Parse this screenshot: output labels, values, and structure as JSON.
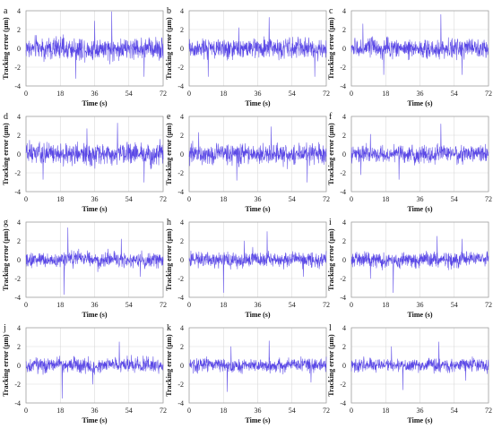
{
  "chart_data": [
    {
      "type": "line",
      "panel_label": "a",
      "xlabel": "Time (s)",
      "ylabel": "Tracking error (μm)",
      "xlim": [
        0,
        72
      ],
      "ylim": [
        -4,
        4
      ],
      "xticks": [
        "0",
        "18",
        "36",
        "54",
        "72"
      ],
      "yticks": [
        "4",
        "2",
        "0",
        "-2",
        "-4"
      ],
      "series": [
        {
          "values_summary": {
            "min": -3.3,
            "max": 3.9,
            "spikes": [
              [
                36,
                2.9
              ],
              [
                45,
                3.9
              ],
              [
                26,
                -3.2
              ],
              [
                62,
                -3.0
              ]
            ],
            "amplitude": 1.2
          }
        }
      ]
    },
    {
      "type": "line",
      "panel_label": "b",
      "xlabel": "Time (s)",
      "ylabel": "Tracking error (μm)",
      "xlim": [
        0,
        72
      ],
      "ylim": [
        -4,
        4
      ],
      "xticks": [
        "0",
        "18",
        "36",
        "54",
        "72"
      ],
      "yticks": [
        "4",
        "2",
        "0",
        "-2",
        "-4"
      ],
      "series": [
        {
          "values_summary": {
            "min": -3.0,
            "max": 3.3,
            "spikes": [
              [
                26,
                2.2
              ],
              [
                42,
                3.3
              ],
              [
                10,
                -3.0
              ],
              [
                66,
                -3.0
              ]
            ],
            "amplitude": 1.1
          }
        }
      ]
    },
    {
      "type": "line",
      "panel_label": "c",
      "xlabel": "Time (s)",
      "ylabel": "Tracking error (μm)",
      "xlim": [
        0,
        72
      ],
      "ylim": [
        -4,
        4
      ],
      "xticks": [
        "0",
        "18",
        "36",
        "54",
        "72"
      ],
      "yticks": [
        "4",
        "2",
        "0",
        "-2",
        "-4"
      ],
      "series": [
        {
          "values_summary": {
            "min": -3.0,
            "max": 3.6,
            "spikes": [
              [
                47,
                3.6
              ],
              [
                6,
                2.6
              ],
              [
                17,
                -2.8
              ],
              [
                58,
                -2.8
              ]
            ],
            "amplitude": 1.0
          }
        }
      ]
    },
    {
      "type": "line",
      "panel_label": "d",
      "xlabel": "Time (s)",
      "ylabel": "Tracking error (μm)",
      "xlim": [
        0,
        72
      ],
      "ylim": [
        -4,
        4
      ],
      "xticks": [
        "0",
        "18",
        "36",
        "54",
        "72"
      ],
      "yticks": [
        "4",
        "2",
        "0",
        "-2",
        "-4"
      ],
      "series": [
        {
          "values_summary": {
            "min": -3.0,
            "max": 3.3,
            "spikes": [
              [
                48,
                3.3
              ],
              [
                32,
                2.7
              ],
              [
                9,
                -2.7
              ],
              [
                62,
                -3.0
              ]
            ],
            "amplitude": 1.1
          }
        }
      ]
    },
    {
      "type": "line",
      "panel_label": "e",
      "xlabel": "Time (s)",
      "ylabel": "Tracking error (μm)",
      "xlim": [
        0,
        72
      ],
      "ylim": [
        -4,
        4
      ],
      "xticks": [
        "0",
        "18",
        "36",
        "54",
        "72"
      ],
      "yticks": [
        "4",
        "2",
        "0",
        "-2",
        "-4"
      ],
      "series": [
        {
          "values_summary": {
            "min": -3.0,
            "max": 2.9,
            "spikes": [
              [
                43,
                2.9
              ],
              [
                5,
                2.3
              ],
              [
                25,
                -2.8
              ],
              [
                62,
                -3.0
              ]
            ],
            "amplitude": 1.1
          }
        }
      ]
    },
    {
      "type": "line",
      "panel_label": "f",
      "xlabel": "Time (s)",
      "ylabel": "Tracking error (μm)",
      "xlim": [
        0,
        72
      ],
      "ylim": [
        -4,
        4
      ],
      "xticks": [
        "0",
        "18",
        "36",
        "54",
        "72"
      ],
      "yticks": [
        "4",
        "2",
        "0",
        "-2",
        "-4"
      ],
      "series": [
        {
          "values_summary": {
            "min": -2.7,
            "max": 3.2,
            "spikes": [
              [
                47,
                3.2
              ],
              [
                10,
                2.1
              ],
              [
                25,
                -2.7
              ],
              [
                5,
                -2.2
              ]
            ],
            "amplitude": 0.9
          }
        }
      ]
    },
    {
      "type": "line",
      "panel_label": "g",
      "xlabel": "Time (s)",
      "ylabel": "Tracking error (μm)",
      "xlim": [
        0,
        72
      ],
      "ylim": [
        -4,
        4
      ],
      "xticks": [
        "0",
        "18",
        "36",
        "54",
        "72"
      ],
      "yticks": [
        "4",
        "2",
        "0",
        "-2",
        "-4"
      ],
      "series": [
        {
          "values_summary": {
            "min": -3.7,
            "max": 3.4,
            "spikes": [
              [
                22,
                3.4
              ],
              [
                20,
                -3.7
              ],
              [
                50,
                2.2
              ],
              [
                60,
                -1.8
              ]
            ],
            "amplitude": 0.8
          }
        }
      ]
    },
    {
      "type": "line",
      "panel_label": "h",
      "xlabel": "Time (s)",
      "ylabel": "Tracking error (μm)",
      "xlim": [
        0,
        72
      ],
      "ylim": [
        -4,
        4
      ],
      "xticks": [
        "0",
        "18",
        "36",
        "54",
        "72"
      ],
      "yticks": [
        "4",
        "2",
        "0",
        "-2",
        "-4"
      ],
      "series": [
        {
          "values_summary": {
            "min": -3.5,
            "max": 3.0,
            "spikes": [
              [
                41,
                3.0
              ],
              [
                18,
                -3.5
              ],
              [
                29,
                2.0
              ],
              [
                60,
                -1.8
              ]
            ],
            "amplitude": 0.8
          }
        }
      ]
    },
    {
      "type": "line",
      "panel_label": "i",
      "xlabel": "Time (s)",
      "ylabel": "Tracking error (μm)",
      "xlim": [
        0,
        72
      ],
      "ylim": [
        -4,
        4
      ],
      "xticks": [
        "0",
        "18",
        "36",
        "54",
        "72"
      ],
      "yticks": [
        "4",
        "2",
        "0",
        "-2",
        "-4"
      ],
      "series": [
        {
          "values_summary": {
            "min": -3.5,
            "max": 2.5,
            "spikes": [
              [
                45,
                2.5
              ],
              [
                22,
                -3.5
              ],
              [
                58,
                2.2
              ],
              [
                10,
                -2.0
              ]
            ],
            "amplitude": 0.8
          }
        }
      ]
    },
    {
      "type": "line",
      "panel_label": "j",
      "xlabel": "Time (s)",
      "ylabel": "Tracking error (μm)",
      "xlim": [
        0,
        72
      ],
      "ylim": [
        -4,
        4
      ],
      "xticks": [
        "0",
        "18",
        "36",
        "54",
        "72"
      ],
      "yticks": [
        "4",
        "2",
        "0",
        "-2",
        "-4"
      ],
      "series": [
        {
          "values_summary": {
            "min": -3.5,
            "max": 2.5,
            "spikes": [
              [
                19,
                2.1
              ],
              [
                49,
                2.5
              ],
              [
                19,
                -3.5
              ],
              [
                35,
                -2.0
              ]
            ],
            "amplitude": 0.8
          }
        }
      ]
    },
    {
      "type": "line",
      "panel_label": "k",
      "xlabel": "Time (s)",
      "ylabel": "Tracking error (μm)",
      "xlim": [
        0,
        72
      ],
      "ylim": [
        -4,
        4
      ],
      "xticks": [
        "0",
        "18",
        "36",
        "54",
        "72"
      ],
      "yticks": [
        "4",
        "2",
        "0",
        "-2",
        "-4"
      ],
      "series": [
        {
          "values_summary": {
            "min": -2.8,
            "max": 2.6,
            "spikes": [
              [
                42,
                2.6
              ],
              [
                20,
                -2.8
              ],
              [
                22,
                2.0
              ],
              [
                64,
                -1.8
              ]
            ],
            "amplitude": 0.7
          }
        }
      ]
    },
    {
      "type": "line",
      "panel_label": "l",
      "xlabel": "Time (s)",
      "ylabel": "Tracking error (μm)",
      "xlim": [
        0,
        72
      ],
      "ylim": [
        -4,
        4
      ],
      "xticks": [
        "0",
        "18",
        "36",
        "54",
        "72"
      ],
      "yticks": [
        "4",
        "2",
        "0",
        "-2",
        "-4"
      ],
      "series": [
        {
          "values_summary": {
            "min": -2.6,
            "max": 2.5,
            "spikes": [
              [
                46,
                2.5
              ],
              [
                27,
                -2.6
              ],
              [
                21,
                2.0
              ],
              [
                60,
                -1.6
              ]
            ],
            "amplitude": 0.7
          }
        }
      ]
    }
  ],
  "colors": {
    "trace": "#5a48e6",
    "grid": "#d9d9d9",
    "frame": "#9a9a9a"
  }
}
